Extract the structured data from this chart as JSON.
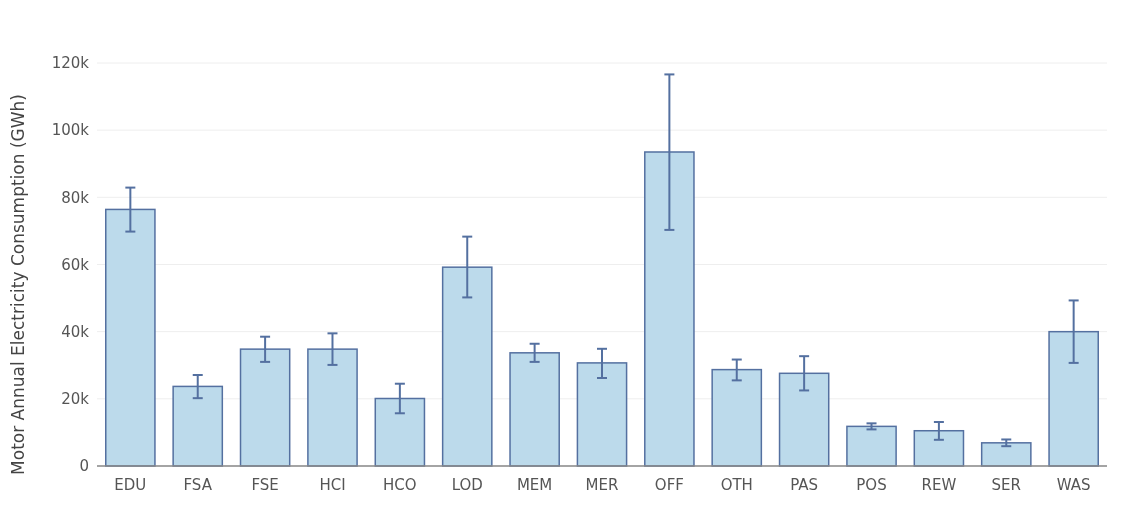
{
  "chart_data": {
    "type": "bar",
    "ylabel": "Motor Annual Electricity Consumption (GWh)",
    "categories": [
      "EDU",
      "FSA",
      "FSE",
      "HCI",
      "HCO",
      "LOD",
      "MEM",
      "MER",
      "OFF",
      "OTH",
      "PAS",
      "POS",
      "REW",
      "SER",
      "WAS"
    ],
    "series": [
      {
        "color": "#bcdaeb",
        "values": [
          76400,
          23700,
          34800,
          34800,
          20100,
          59200,
          33700,
          30700,
          93500,
          28700,
          27600,
          11800,
          10500,
          6900,
          40000
        ],
        "errors": [
          [
            69800,
            82900
          ],
          [
            20200,
            27100
          ],
          [
            31000,
            38500
          ],
          [
            30100,
            39500
          ],
          [
            15700,
            24500
          ],
          [
            50200,
            68300
          ],
          [
            31000,
            36400
          ],
          [
            26200,
            34900
          ],
          [
            70300,
            116600
          ],
          [
            25500,
            31700
          ],
          [
            22500,
            32700
          ],
          [
            10900,
            12700
          ],
          [
            7800,
            13100
          ],
          [
            5900,
            7900
          ],
          [
            30700,
            49300
          ]
        ]
      }
    ],
    "ylim": [
      0,
      120000
    ],
    "yticks": [
      0,
      {
        "value": 20000,
        "label": "20k"
      },
      {
        "value": 40000,
        "label": "40k"
      },
      {
        "value": 60000,
        "label": "60k"
      },
      {
        "value": 80000,
        "label": "80k"
      },
      {
        "value": 100000,
        "label": "100k"
      },
      {
        "value": 120000,
        "label": "120k"
      }
    ],
    "grid": "y"
  }
}
